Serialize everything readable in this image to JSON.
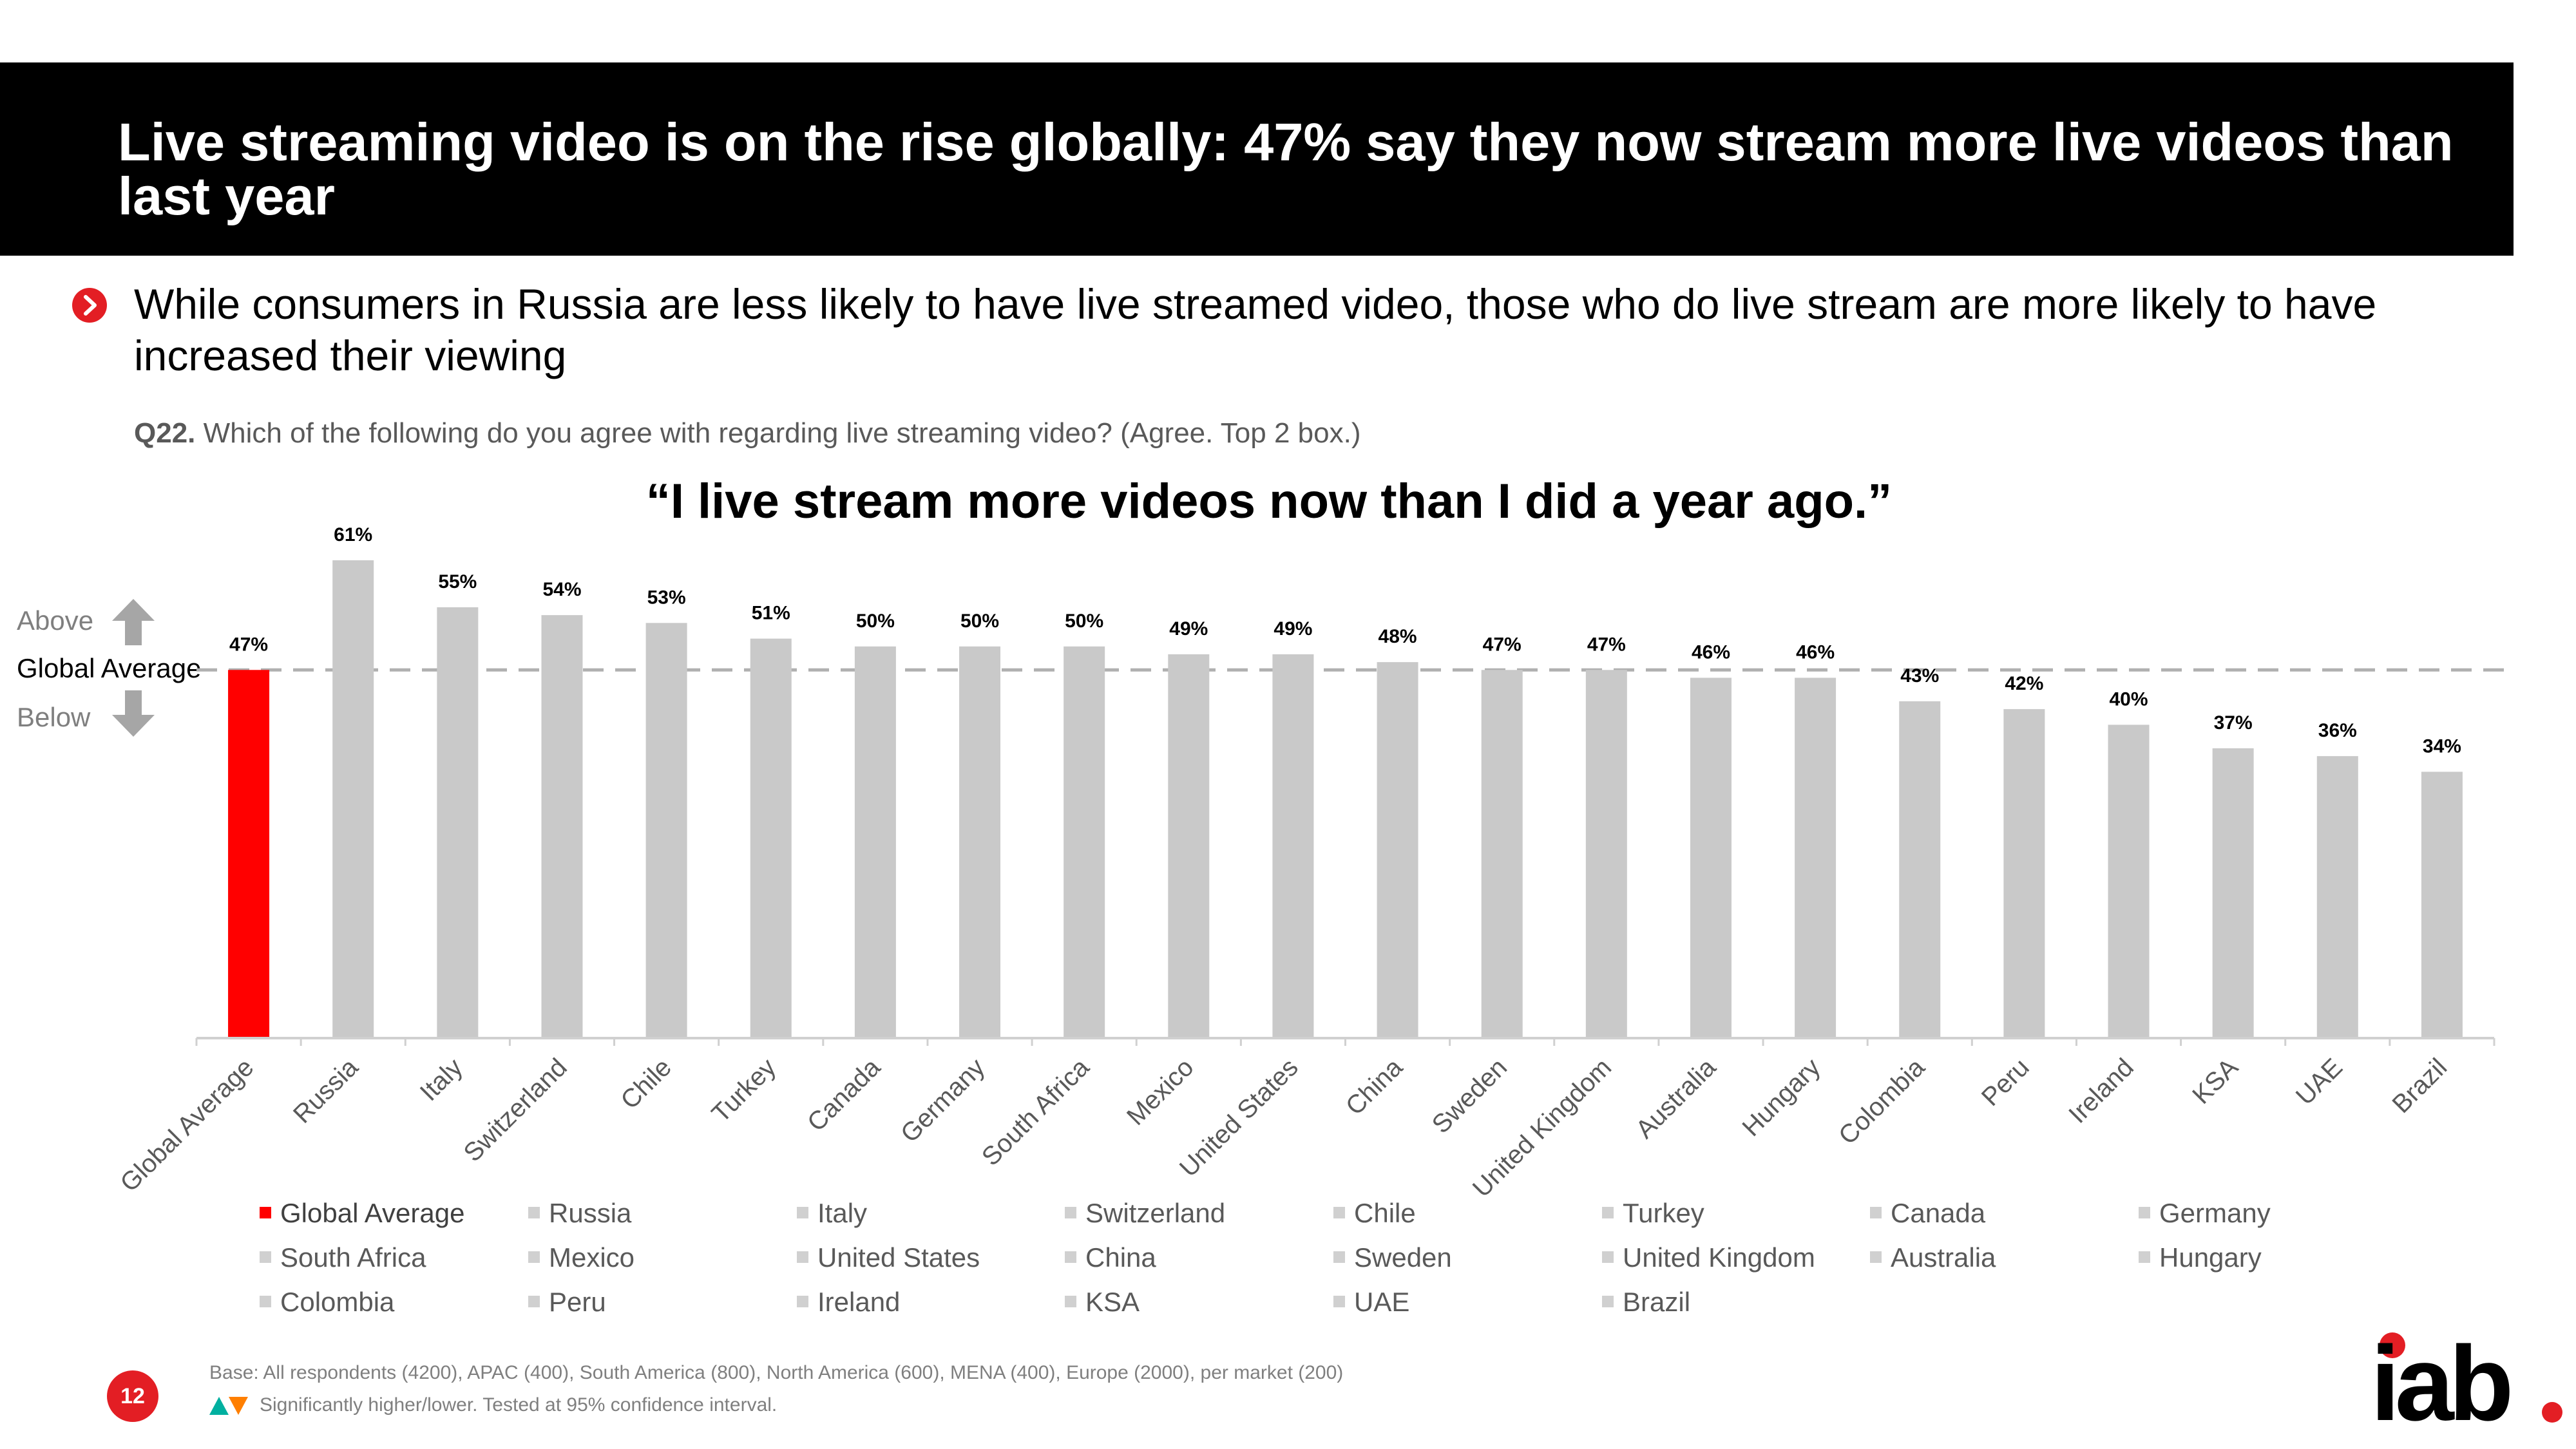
{
  "header": {
    "title": "Live streaming video is on the rise globally: 47% say they now stream more live videos than last year"
  },
  "bullet": {
    "text": "While consumers in Russia are less likely to have live streamed video, those who do live stream are more likely to have increased their viewing"
  },
  "question": {
    "code": "Q22.",
    "text": "Which of the following do you agree with regarding live streaming video? (Agree. Top 2 box.)"
  },
  "side_labels": {
    "above": "Above",
    "global_average": "Global Average",
    "below": "Below"
  },
  "colors": {
    "highlight": "#ff0000",
    "bar": "#c9c9c9",
    "accent": "#e31e24",
    "reference_line": "#b0b0b0"
  },
  "chart_data": {
    "type": "bar",
    "title": "“I live stream more videos now than I did a year ago.”",
    "categories": [
      "Global Average",
      "Russia",
      "Italy",
      "Switzerland",
      "Chile",
      "Turkey",
      "Canada",
      "Germany",
      "South Africa",
      "Mexico",
      "United States",
      "China",
      "Sweden",
      "United Kingdom",
      "Australia",
      "Hungary",
      "Colombia",
      "Peru",
      "Ireland",
      "KSA",
      "UAE",
      "Brazil"
    ],
    "values": [
      47,
      61,
      55,
      54,
      53,
      51,
      50,
      50,
      50,
      49,
      49,
      48,
      47,
      47,
      46,
      46,
      43,
      42,
      40,
      37,
      36,
      34
    ],
    "value_labels": [
      "47%",
      "61%",
      "55%",
      "54%",
      "53%",
      "51%",
      "50%",
      "50%",
      "50%",
      "49%",
      "49%",
      "48%",
      "47%",
      "47%",
      "46%",
      "46%",
      "43%",
      "42%",
      "40%",
      "37%",
      "36%",
      "34%"
    ],
    "highlight_index": 0,
    "reference_line": 47,
    "ylim": [
      0,
      61
    ],
    "xlabel": "",
    "ylabel": "",
    "grid": false
  },
  "legend": {
    "items": [
      "Global Average",
      "Russia",
      "Italy",
      "Switzerland",
      "Chile",
      "Turkey",
      "Canada",
      "Germany",
      "South Africa",
      "Mexico",
      "United States",
      "China",
      "Sweden",
      "United Kingdom",
      "Australia",
      "Hungary",
      "Colombia",
      "Peru",
      "Ireland",
      "KSA",
      "UAE",
      "Brazil"
    ]
  },
  "footer": {
    "base": "Base: All respondents (4200), APAC (400), South America (800), North America (600), MENA (400), Europe (2000), per market (200)",
    "significance": "Significantly higher/lower. Tested at 95% confidence interval.",
    "page_number": "12",
    "logo_text": "iab"
  }
}
